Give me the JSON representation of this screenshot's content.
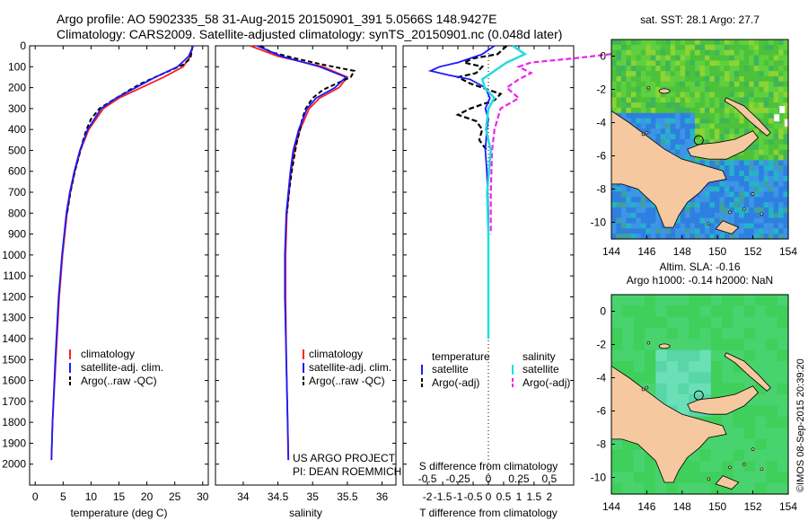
{
  "header": {
    "line1": "Argo profile: AO 5902335_58 31-Aug-2015 20150901_391 5.0566S 148.9427E",
    "line2": "Climatology: CARS2009. Satellite-adjusted climatology: synTS_20150901.nc (0.048d later)"
  },
  "stamp": "©IMOS 08-Sep-2015 20:39:20",
  "colors": {
    "climatology": "#ff2020",
    "satellite": "#1a1aff",
    "argo": "#000000",
    "cyan": "#22dddd",
    "magenta": "#ee22ee",
    "land": "#f5c8a0"
  },
  "chart_data": [
    {
      "type": "line",
      "name": "temperature",
      "xlabel": "temperature (deg C)",
      "xlim": [
        -1,
        31
      ],
      "xticks": [
        0,
        5,
        10,
        15,
        20,
        25,
        30
      ],
      "ylim": [
        0,
        2100
      ],
      "yticks": [
        0,
        100,
        200,
        300,
        400,
        500,
        600,
        700,
        800,
        900,
        1000,
        1100,
        1200,
        1300,
        1400,
        1500,
        1600,
        1700,
        1800,
        1900,
        2000
      ],
      "legend": [
        "climatology",
        "satellite-adj. clim.",
        "Argo(..raw -QC)"
      ],
      "series": [
        {
          "name": "climatology",
          "depth": [
            0,
            50,
            100,
            150,
            200,
            250,
            300,
            400,
            500,
            600,
            700,
            800,
            1000,
            1200,
            1500,
            1800,
            1980
          ],
          "values": [
            28.2,
            27.8,
            26.5,
            23,
            19,
            15,
            12.2,
            9.6,
            8.1,
            7.1,
            6.3,
            5.7,
            4.9,
            4.3,
            3.7,
            3.1,
            2.9
          ]
        },
        {
          "name": "satellite-adj. clim.",
          "depth": [
            0,
            50,
            100,
            150,
            200,
            250,
            300,
            400,
            500,
            600,
            700,
            800,
            1000,
            1200,
            1500,
            1800,
            1980
          ],
          "values": [
            28.3,
            27.5,
            25.5,
            21.5,
            18,
            14.5,
            11.8,
            9.4,
            8,
            7,
            6.2,
            5.6,
            4.8,
            4.2,
            3.6,
            3.1,
            2.9
          ]
        },
        {
          "name": "Argo(..raw -QC)",
          "depth": [
            0,
            30,
            60,
            90,
            120,
            150,
            180,
            210,
            250,
            300,
            350,
            400,
            450,
            500,
            600,
            700,
            800
          ],
          "values": [
            28.2,
            28,
            27.8,
            26.5,
            24,
            21.5,
            19,
            17,
            14.5,
            11.5,
            10,
            9.2,
            8.6,
            8.1,
            7.1,
            6.3,
            5.7
          ]
        }
      ]
    },
    {
      "type": "line",
      "name": "salinity",
      "xlabel": "salinity",
      "xlim": [
        33.6,
        36.2
      ],
      "xticks": [
        34,
        34.5,
        35,
        35.5,
        36
      ],
      "ylim": [
        0,
        2100
      ],
      "legend": [
        "climatology",
        "satellite-adj. clim.",
        "Argo(..raw -QC)"
      ],
      "annotations": [
        "US ARGO PROJECT",
        "PI: DEAN ROEMMICH"
      ],
      "series": [
        {
          "name": "climatology",
          "depth": [
            0,
            50,
            100,
            150,
            200,
            250,
            300,
            400,
            500,
            600,
            700,
            800,
            1000,
            1200,
            1500,
            1800,
            1980
          ],
          "values": [
            34.1,
            34.5,
            35.15,
            35.5,
            35.38,
            35.1,
            34.95,
            34.82,
            34.74,
            34.69,
            34.66,
            34.63,
            34.61,
            34.61,
            34.62,
            34.64,
            34.65
          ]
        },
        {
          "name": "satellite-adj. clim.",
          "depth": [
            0,
            50,
            100,
            150,
            200,
            250,
            300,
            400,
            500,
            600,
            700,
            800,
            1000,
            1200,
            1500,
            1800,
            1980
          ],
          "values": [
            34.2,
            34.55,
            35.1,
            35.48,
            35.32,
            35.05,
            34.92,
            34.8,
            34.72,
            34.68,
            34.65,
            34.62,
            34.6,
            34.6,
            34.62,
            34.64,
            34.65
          ]
        },
        {
          "name": "Argo(..raw -QC)",
          "depth": [
            0,
            30,
            60,
            90,
            120,
            150,
            180,
            210,
            250,
            300,
            350,
            400,
            450,
            500,
            600,
            700,
            800
          ],
          "values": [
            34.25,
            34.4,
            34.75,
            35.15,
            35.6,
            35.55,
            35.35,
            35.15,
            35.0,
            34.9,
            34.85,
            34.82,
            34.78,
            34.75,
            34.7,
            34.66,
            34.63
          ]
        }
      ]
    },
    {
      "type": "line",
      "name": "difference",
      "xlabel": "T difference from climatology",
      "xlabel_top": "S difference from climatology",
      "xlim": [
        -2.8,
        2.8
      ],
      "xticks": [
        -2,
        -1.5,
        -1,
        -0.5,
        0,
        0.5,
        1,
        1.5,
        2
      ],
      "xtick_labels": [
        "-2",
        "-1.5",
        "-1",
        "-0.5",
        "0",
        "0.5",
        "1",
        "1.5",
        "2"
      ],
      "sticks": [
        -0.5,
        -0.25,
        0,
        0.25,
        0.5
      ],
      "stick_labels": [
        "-0.5",
        "-0.25",
        "0",
        "0.25",
        "0.5"
      ],
      "ylim": [
        0,
        2100
      ],
      "legend_headers": [
        "temperature",
        "salinity"
      ],
      "legend": [
        "satellite",
        "Argo(-adj)",
        "satellite",
        "Argo(-adj)"
      ],
      "series": [
        {
          "name": "T satellite",
          "depth": [
            0,
            40,
            80,
            100,
            120,
            140,
            160,
            200,
            250,
            300,
            350,
            400,
            500,
            600,
            800,
            1000,
            1200,
            1400
          ],
          "values": [
            0.2,
            -0.2,
            -1,
            -1.6,
            -1.9,
            -1.3,
            -0.6,
            -0.1,
            0.05,
            -0.1,
            0,
            -0.05,
            -0.1,
            -0.05,
            0,
            0,
            0,
            0
          ]
        },
        {
          "name": "T Argo(-adj)",
          "depth": [
            0,
            40,
            60,
            80,
            100,
            130,
            150,
            180,
            200,
            230,
            260,
            300,
            330,
            360,
            400,
            450,
            500
          ],
          "values": [
            0.6,
            0.3,
            -0.5,
            -0.8,
            -0.2,
            -0.4,
            -1.0,
            -0.6,
            -0.2,
            0.4,
            0.2,
            -0.6,
            -1.0,
            -0.4,
            -0.2,
            -0.3,
            -0.05
          ]
        },
        {
          "name": "S satellite",
          "depth": [
            0,
            40,
            80,
            120,
            160,
            200,
            250,
            300,
            400,
            500,
            700,
            900,
            1200,
            1400
          ],
          "values": [
            0.2,
            0.3,
            0.15,
            0.05,
            -0.05,
            -0.03,
            0.05,
            0,
            -0.02,
            0.02,
            -0.01,
            0,
            0,
            0
          ]
        },
        {
          "name": "S Argo(-adj)",
          "depth": [
            0,
            20,
            40,
            60,
            80,
            100,
            130,
            160,
            200,
            250,
            300,
            400,
            500,
            700,
            900
          ],
          "values": [
            2.4,
            1.6,
            1.0,
            0.7,
            0.35,
            0.25,
            0.35,
            0.25,
            0.15,
            0.25,
            0.1,
            0.05,
            0.03,
            0.02,
            0.02
          ]
        }
      ]
    },
    {
      "type": "heatmap",
      "name": "sst-map",
      "title": "sat. SST: 28.1  Argo: 27.7",
      "xlim": [
        144,
        154
      ],
      "ylim": [
        -11,
        1
      ],
      "xticks": [
        144,
        146,
        148,
        150,
        152,
        154
      ],
      "yticks": [
        0,
        -2,
        -4,
        -6,
        -8,
        -10
      ],
      "marker": {
        "lon": 148.94,
        "lat": -5.06
      }
    },
    {
      "type": "heatmap",
      "name": "sla-map",
      "title": "Altim. SLA: -0.16",
      "subtitle": "Argo h1000: -0.14 h2000: NaN",
      "xlim": [
        144,
        154
      ],
      "ylim": [
        -11,
        1
      ],
      "xticks": [
        144,
        146,
        148,
        150,
        152,
        154
      ],
      "yticks": [
        0,
        -2,
        -4,
        -6,
        -8,
        -10
      ],
      "marker": {
        "lon": 148.94,
        "lat": -5.06
      }
    }
  ]
}
